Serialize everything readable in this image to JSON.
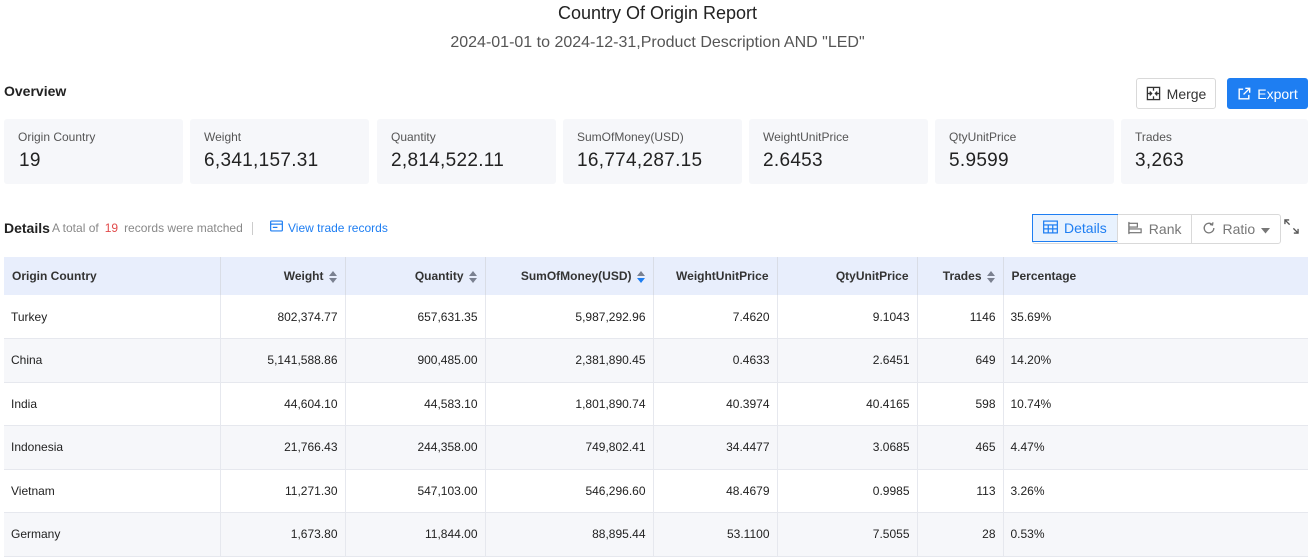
{
  "header": {
    "title": "Country Of Origin Report",
    "subtitle": "2024-01-01 to 2024-12-31,Product Description AND \"LED\""
  },
  "overview": {
    "label": "Overview",
    "merge_label": "Merge",
    "export_label": "Export",
    "cards": [
      {
        "label": "Origin Country",
        "value": "19"
      },
      {
        "label": "Weight",
        "value": "6,341,157.31"
      },
      {
        "label": "Quantity",
        "value": "2,814,522.11"
      },
      {
        "label": "SumOfMoney(USD)",
        "value": "16,774,287.15"
      },
      {
        "label": "WeightUnitPrice",
        "value": "2.6453"
      },
      {
        "label": "QtyUnitPrice",
        "value": "5.9599"
      },
      {
        "label": "Trades",
        "value": "3,263"
      }
    ]
  },
  "details": {
    "title": "Details",
    "meta_prefix": "A total of",
    "count": "19",
    "meta_suffix": "records were matched",
    "view_link": "View trade records",
    "views": {
      "details": "Details",
      "rank": "Rank",
      "ratio": "Ratio"
    },
    "accent_color": "#1e7ef2"
  },
  "table": {
    "columns": [
      "Origin Country",
      "Weight",
      "Quantity",
      "SumOfMoney(USD)",
      "WeightUnitPrice",
      "QtyUnitPrice",
      "Trades",
      "Percentage"
    ],
    "rows": [
      [
        "Turkey",
        "802,374.77",
        "657,631.35",
        "5,987,292.96",
        "7.4620",
        "9.1043",
        "1146",
        "35.69%"
      ],
      [
        "China",
        "5,141,588.86",
        "900,485.00",
        "2,381,890.45",
        "0.4633",
        "2.6451",
        "649",
        "14.20%"
      ],
      [
        "India",
        "44,604.10",
        "44,583.10",
        "1,801,890.74",
        "40.3974",
        "40.4165",
        "598",
        "10.74%"
      ],
      [
        "Indonesia",
        "21,766.43",
        "244,358.00",
        "749,802.41",
        "34.4477",
        "3.0685",
        "465",
        "4.47%"
      ],
      [
        "Vietnam",
        "11,271.30",
        "547,103.00",
        "546,296.60",
        "48.4679",
        "0.9985",
        "113",
        "3.26%"
      ],
      [
        "Germany",
        "1,673.80",
        "11,844.00",
        "88,895.44",
        "53.1100",
        "7.5055",
        "28",
        "0.53%"
      ]
    ]
  }
}
